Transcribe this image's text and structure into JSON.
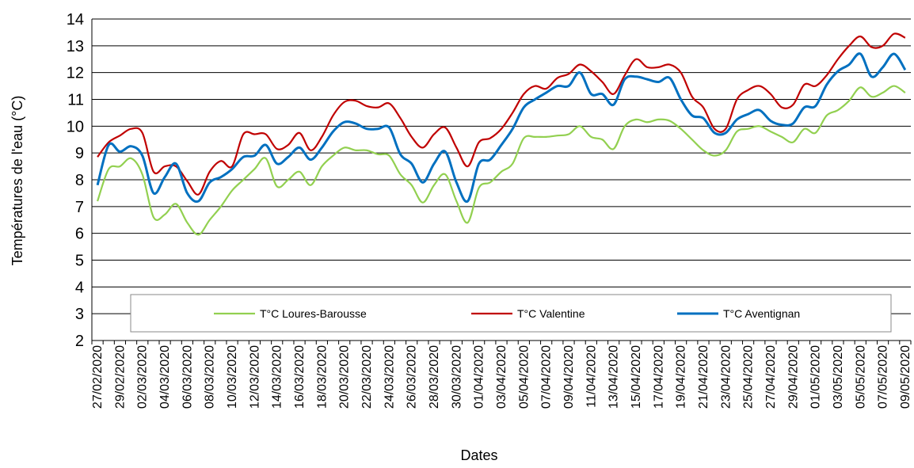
{
  "chart_data": {
    "type": "line",
    "x_label": "Dates",
    "y_label": "Températures de l'eau (°C)",
    "categories": [
      "27/02/2020",
      null,
      "29/02/2020",
      null,
      "02/03/2020",
      null,
      "04/03/2020",
      null,
      "06/03/2020",
      null,
      "08/03/2020",
      null,
      "10/03/2020",
      null,
      "12/03/2020",
      null,
      "14/03/2020",
      null,
      "16/03/2020",
      null,
      "18/03/2020",
      null,
      "20/03/2020",
      null,
      "22/03/2020",
      null,
      "24/03/2020",
      null,
      "26/03/2020",
      null,
      "28/03/2020",
      null,
      "30/03/2020",
      null,
      "01/04/2020",
      null,
      "03/04/2020",
      null,
      "05/04/2020",
      null,
      "07/04/2020",
      null,
      "09/04/2020",
      null,
      "11/04/2020",
      null,
      "13/04/2020",
      null,
      "15/04/2020",
      null,
      "17/04/2020",
      null,
      "19/04/2020",
      null,
      "21/04/2020",
      null,
      "23/04/2020",
      null,
      "25/04/2020",
      null,
      "27/04/2020",
      null,
      "29/04/2020",
      null,
      "01/05/2020",
      null,
      "03/05/2020",
      null,
      "05/05/2020",
      null,
      "07/05/2020",
      null,
      "09/05/2020"
    ],
    "series": [
      {
        "name": "T°C Loures-Barousse",
        "color": "#92d050",
        "values": [
          7.2,
          8.4,
          8.5,
          8.8,
          8.2,
          6.6,
          6.7,
          7.1,
          6.4,
          5.95,
          6.5,
          7.0,
          7.6,
          8.0,
          8.4,
          8.8,
          7.75,
          8.0,
          8.3,
          7.8,
          8.5,
          8.9,
          9.2,
          9.1,
          9.1,
          8.95,
          8.9,
          8.2,
          7.8,
          7.15,
          7.8,
          8.2,
          7.2,
          6.4,
          7.7,
          7.9,
          8.3,
          8.6,
          9.55,
          9.6,
          9.6,
          9.65,
          9.7,
          10.0,
          9.6,
          9.5,
          9.15,
          10.0,
          10.25,
          10.15,
          10.25,
          10.2,
          9.9,
          9.5,
          9.1,
          8.9,
          9.1,
          9.8,
          9.9,
          10.0,
          9.8,
          9.6,
          9.4,
          9.9,
          9.75,
          10.4,
          10.6,
          10.95,
          11.45,
          11.1,
          11.25,
          11.5,
          11.25
        ]
      },
      {
        "name": "T°C Valentine",
        "color": "#c00000",
        "values": [
          8.85,
          9.4,
          9.65,
          9.9,
          9.75,
          8.3,
          8.5,
          8.5,
          7.95,
          7.45,
          8.3,
          8.7,
          8.5,
          9.7,
          9.7,
          9.7,
          9.15,
          9.3,
          9.75,
          9.1,
          9.6,
          10.4,
          10.9,
          10.95,
          10.75,
          10.7,
          10.85,
          10.3,
          9.6,
          9.2,
          9.7,
          9.95,
          9.2,
          8.5,
          9.4,
          9.55,
          9.9,
          10.5,
          11.2,
          11.5,
          11.4,
          11.8,
          11.95,
          12.3,
          12.05,
          11.65,
          11.2,
          11.9,
          12.5,
          12.2,
          12.2,
          12.3,
          12.0,
          11.1,
          10.7,
          9.9,
          9.9,
          11.0,
          11.35,
          11.5,
          11.2,
          10.7,
          10.8,
          11.55,
          11.5,
          11.9,
          12.5,
          13.0,
          13.35,
          12.95,
          13.0,
          13.45,
          13.3
        ]
      },
      {
        "name": "T°C Aventignan",
        "color": "#0070c0",
        "values": [
          7.8,
          9.3,
          9.05,
          9.25,
          8.9,
          7.5,
          8.1,
          8.6,
          7.5,
          7.2,
          7.9,
          8.1,
          8.4,
          8.85,
          8.9,
          9.3,
          8.6,
          8.85,
          9.2,
          8.75,
          9.2,
          9.8,
          10.15,
          10.1,
          9.9,
          9.9,
          9.95,
          8.95,
          8.6,
          7.9,
          8.6,
          9.05,
          7.9,
          7.2,
          8.6,
          8.75,
          9.3,
          9.9,
          10.7,
          11.0,
          11.25,
          11.5,
          11.5,
          12.0,
          11.2,
          11.2,
          10.8,
          11.75,
          11.85,
          11.75,
          11.65,
          11.8,
          11.0,
          10.4,
          10.3,
          9.75,
          9.75,
          10.25,
          10.45,
          10.6,
          10.2,
          10.05,
          10.1,
          10.7,
          10.75,
          11.55,
          12.05,
          12.3,
          12.7,
          11.85,
          12.2,
          12.7,
          12.1
        ]
      }
    ],
    "ylim": [
      2,
      14
    ],
    "yticks": [
      2,
      3,
      4,
      5,
      6,
      7,
      8,
      9,
      10,
      11,
      12,
      13,
      14
    ],
    "grid": true
  }
}
